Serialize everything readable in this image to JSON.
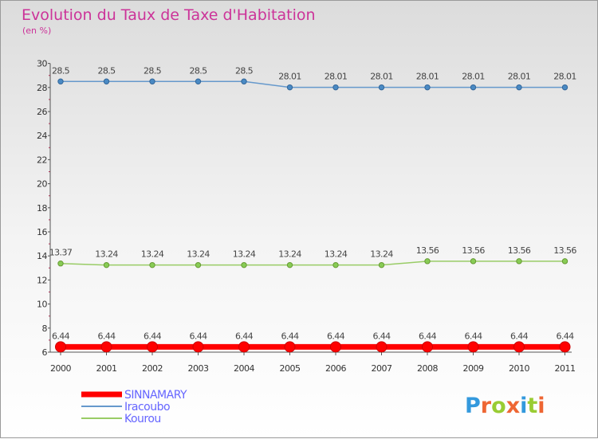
{
  "chart_data": {
    "type": "line",
    "title": "Evolution du Taux de Taxe d'Habitation",
    "subtitle": "(en %)",
    "x": [
      "2000",
      "2001",
      "2002",
      "2003",
      "2004",
      "2005",
      "2006",
      "2007",
      "2008",
      "2009",
      "2010",
      "2011"
    ],
    "ylim": [
      6,
      30
    ],
    "yticks": [
      "6",
      "8",
      "10",
      "12",
      "14",
      "16",
      "18",
      "20",
      "22",
      "24",
      "26",
      "28",
      "30"
    ],
    "grid": false,
    "legend_position": "bottom-left",
    "series": [
      {
        "name": "SINNAMARY",
        "color": "#ff0000",
        "values": [
          6.44,
          6.44,
          6.44,
          6.44,
          6.44,
          6.44,
          6.44,
          6.44,
          6.44,
          6.44,
          6.44,
          6.44
        ],
        "labels": [
          "6.44",
          "6.44",
          "6.44",
          "6.44",
          "6.44",
          "6.44",
          "6.44",
          "6.44",
          "6.44",
          "6.44",
          "6.44",
          "6.44"
        ]
      },
      {
        "name": "Iracoubo",
        "color": "#6699cc",
        "values": [
          28.5,
          28.5,
          28.5,
          28.5,
          28.5,
          28.01,
          28.01,
          28.01,
          28.01,
          28.01,
          28.01,
          28.01
        ],
        "labels": [
          "28.5",
          "28.5",
          "28.5",
          "28.5",
          "28.5",
          "28.01",
          "28.01",
          "28.01",
          "28.01",
          "28.01",
          "28.01",
          "28.01"
        ]
      },
      {
        "name": "Kourou",
        "color": "#99cc66",
        "values": [
          13.37,
          13.24,
          13.24,
          13.24,
          13.24,
          13.24,
          13.24,
          13.24,
          13.56,
          13.56,
          13.56,
          13.56
        ],
        "labels": [
          "13.37",
          "13.24",
          "13.24",
          "13.24",
          "13.24",
          "13.24",
          "13.24",
          "13.24",
          "13.56",
          "13.56",
          "13.56",
          "13.56"
        ]
      }
    ]
  },
  "title_color": "#cc3399",
  "legend_text_color": "#6666ff",
  "brand": {
    "text": "Proxiti",
    "letter_colors": [
      "#3399dd",
      "#ee6633",
      "#99cc33",
      "#ee6633",
      "#3399dd",
      "#99cc33",
      "#ee6633"
    ]
  }
}
